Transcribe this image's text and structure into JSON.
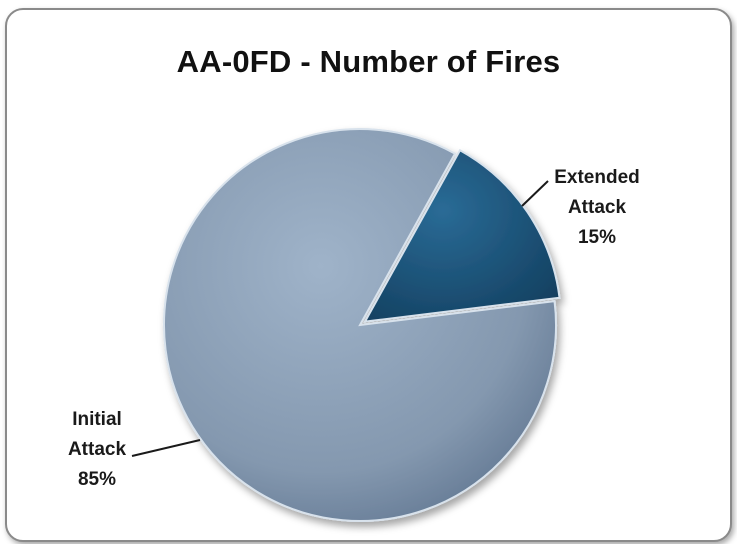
{
  "chart_data": {
    "type": "pie",
    "title": "AA-0FD - Number of Fires",
    "slices": [
      {
        "label_lines": [
          "Extended",
          "Attack",
          "15%"
        ],
        "value": 15,
        "color": "#1f5a82"
      },
      {
        "label_lines": [
          "Initial",
          "Attack",
          "85%"
        ],
        "value": 85,
        "color": "#8ea3ba"
      }
    ],
    "legend": "none",
    "data_labels": "outside with leader lines"
  }
}
